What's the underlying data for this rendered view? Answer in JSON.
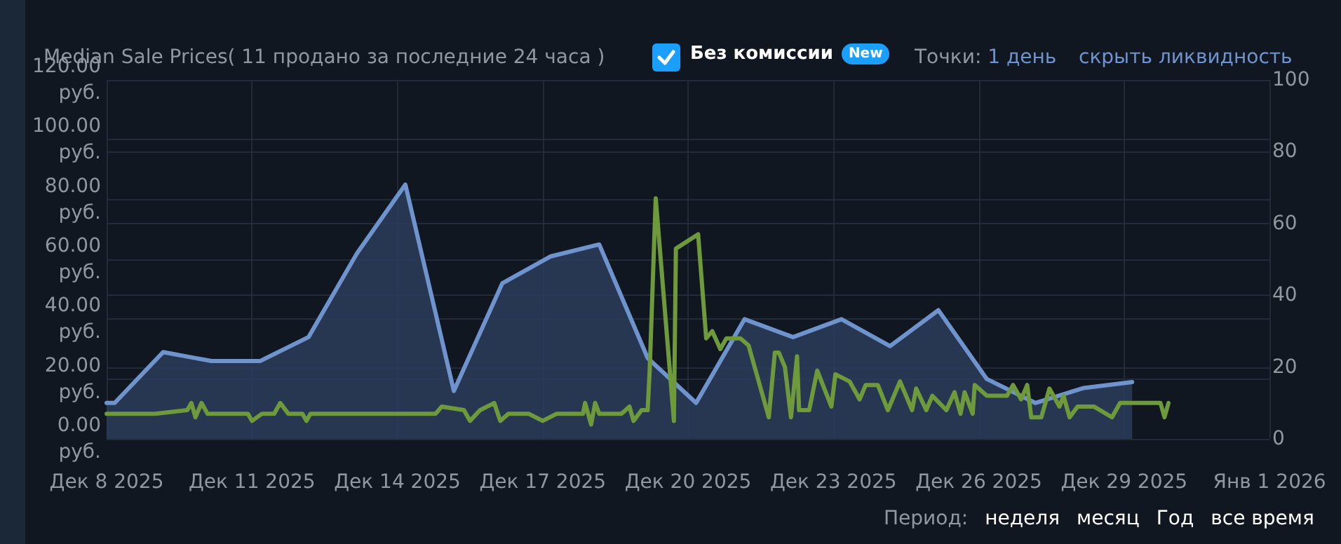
{
  "chart_data": {
    "type": "line",
    "title": "Median Sale Prices( 11 продано за последние 24 часа )",
    "annotations": [
      "Без комиссии",
      "New",
      "Точки:",
      "1 день",
      "скрыть ликвидность",
      "Период:",
      "неделя",
      "месяц",
      "Год",
      "все время"
    ],
    "series": [
      {
        "type": "area",
        "color": "#6f94cd",
        "x": [
          "2025-12-08T00:00",
          "2025-12-08T04:00",
          "2025-12-09T04:00",
          "2025-12-10T04:00",
          "2025-12-11T04:00",
          "2025-12-12T04:00",
          "2025-12-13T04:00",
          "2025-12-14T04:00",
          "2025-12-15T04:00",
          "2025-12-16T04:00",
          "2025-12-17T04:00",
          "2025-12-18T04:00",
          "2025-12-19T04:00",
          "2025-12-20T04:00",
          "2025-12-21T04:00",
          "2025-12-22T04:00",
          "2025-12-23T04:00",
          "2025-12-24T04:00",
          "2025-12-25T04:00",
          "2025-12-26T04:00",
          "2025-12-27T04:00",
          "2025-12-28T04:00",
          "2025-12-29T04:00"
        ],
        "values": [
          12,
          12,
          29,
          26,
          26,
          34,
          62,
          85,
          16,
          52,
          61,
          65,
          27,
          12,
          40,
          34,
          40,
          31,
          43,
          20,
          12,
          17,
          19
        ]
      },
      {
        "axis": "y2",
        "color": "#6e9a3c",
        "x": [
          "2025-12-08T00:00",
          "2025-12-09T00:00",
          "2025-12-09T16:00",
          "2025-12-09T18:00",
          "2025-12-09T20:00",
          "2025-12-09T23:00",
          "2025-12-10T02:00",
          "2025-12-10T22:00",
          "2025-12-11T00:00",
          "2025-12-11T05:00",
          "2025-12-11T11:00",
          "2025-12-11T14:00",
          "2025-12-11T18:00",
          "2025-12-12T01:00",
          "2025-12-12T03:00",
          "2025-12-12T05:00",
          "2025-12-12T13:00",
          "2025-12-14T00:00",
          "2025-12-14T19:00",
          "2025-12-14T22:00",
          "2025-12-15T09:00",
          "2025-12-15T12:00",
          "2025-12-15T17:00",
          "2025-12-16T00:00",
          "2025-12-16T03:00",
          "2025-12-16T07:00",
          "2025-12-16T17:00",
          "2025-12-17T00:00",
          "2025-12-17T07:00",
          "2025-12-17T20:00",
          "2025-12-17T21:00",
          "2025-12-18T00:00",
          "2025-12-18T02:00",
          "2025-12-18T04:00",
          "2025-12-18T15:00",
          "2025-12-18T19:00",
          "2025-12-18T21:00",
          "2025-12-19T01:00",
          "2025-12-19T04:00",
          "2025-12-19T05:00",
          "2025-12-19T08:00",
          "2025-12-19T17:00",
          "2025-12-19T18:00",
          "2025-12-20T05:00",
          "2025-12-20T09:00",
          "2025-12-20T12:00",
          "2025-12-20T16:00",
          "2025-12-20T19:00",
          "2025-12-21T02:00",
          "2025-12-21T06:00",
          "2025-12-21T16:00",
          "2025-12-21T19:00",
          "2025-12-21T21:00",
          "2025-12-22T00:00",
          "2025-12-22T03:00",
          "2025-12-22T06:00",
          "2025-12-22T07:00",
          "2025-12-22T12:00",
          "2025-12-22T16:00",
          "2025-12-22T23:00",
          "2025-12-23T01:00",
          "2025-12-23T08:00",
          "2025-12-23T13:00",
          "2025-12-23T16:00",
          "2025-12-23T22:00",
          "2025-12-24T03:00",
          "2025-12-24T09:00",
          "2025-12-24T15:00",
          "2025-12-24T17:00",
          "2025-12-24T22:00",
          "2025-12-25T01:00",
          "2025-12-25T08:00",
          "2025-12-25T12:00",
          "2025-12-25T15:00",
          "2025-12-25T17:00",
          "2025-12-25T21:00",
          "2025-12-25T22:00",
          "2025-12-26T04:00",
          "2025-12-26T14:00",
          "2025-12-26T17:00",
          "2025-12-26T21:00",
          "2025-12-27T00:00",
          "2025-12-27T02:00",
          "2025-12-27T07:00",
          "2025-12-27T11:00",
          "2025-12-27T16:00",
          "2025-12-27T18:00",
          "2025-12-27T21:00",
          "2025-12-28T01:00",
          "2025-12-28T09:00",
          "2025-12-28T18:00",
          "2025-12-28T22:00",
          "2025-12-29T18:00",
          "2025-12-29T20:00",
          "2025-12-29T22:00"
        ],
        "values": [
          7,
          7,
          8,
          10,
          6,
          10,
          7,
          7,
          5,
          7,
          7,
          10,
          7,
          7,
          5,
          7,
          7,
          7,
          7,
          9,
          8,
          5,
          8,
          10,
          5,
          7,
          7,
          5,
          7,
          7,
          10,
          4,
          10,
          7,
          7,
          9,
          5,
          8,
          8,
          19,
          67,
          5,
          53,
          57,
          28,
          30,
          25,
          28,
          28,
          26,
          6,
          24,
          24,
          20,
          6,
          23,
          8,
          8,
          19,
          9,
          18,
          16,
          11,
          15,
          15,
          8,
          16,
          8,
          14,
          8,
          12,
          8,
          13,
          7,
          13,
          7,
          15,
          12,
          12,
          15,
          11,
          15,
          6,
          6,
          14,
          9,
          12,
          6,
          9,
          9,
          6,
          10,
          10,
          6,
          10
        ]
      }
    ],
    "xlim": [
      "2025-12-08",
      "2026-01-01"
    ],
    "xticks": [
      {
        "value": "2025-12-08",
        "label": "Дек 8 2025"
      },
      {
        "value": "2025-12-11",
        "label": "Дек 11 2025"
      },
      {
        "value": "2025-12-14",
        "label": "Дек 14 2025"
      },
      {
        "value": "2025-12-17",
        "label": "Дек 17 2025"
      },
      {
        "value": "2025-12-20",
        "label": "Дек 20 2025"
      },
      {
        "value": "2025-12-23",
        "label": "Дек 23 2025"
      },
      {
        "value": "2025-12-26",
        "label": "Дек 26 2025"
      },
      {
        "value": "2025-12-29",
        "label": "Дек 29 2025"
      },
      {
        "value": "2026-01-01",
        "label": "Янв 1 2026"
      }
    ],
    "ylim": [
      0,
      120
    ],
    "yticks": [
      {
        "value": 0,
        "label": "0.00 руб."
      },
      {
        "value": 20,
        "label": "20.00 руб."
      },
      {
        "value": 40,
        "label": "40.00 руб."
      },
      {
        "value": 60,
        "label": "60.00 руб."
      },
      {
        "value": 80,
        "label": "80.00 руб."
      },
      {
        "value": 100,
        "label": "100.00 руб."
      },
      {
        "value": 120,
        "label": "120.00 руб."
      }
    ],
    "y2lim": [
      0,
      100
    ],
    "y2ticks": [
      0,
      20,
      40,
      60,
      80,
      100
    ],
    "grid": true,
    "marker": "none",
    "line_style": "solid"
  }
}
